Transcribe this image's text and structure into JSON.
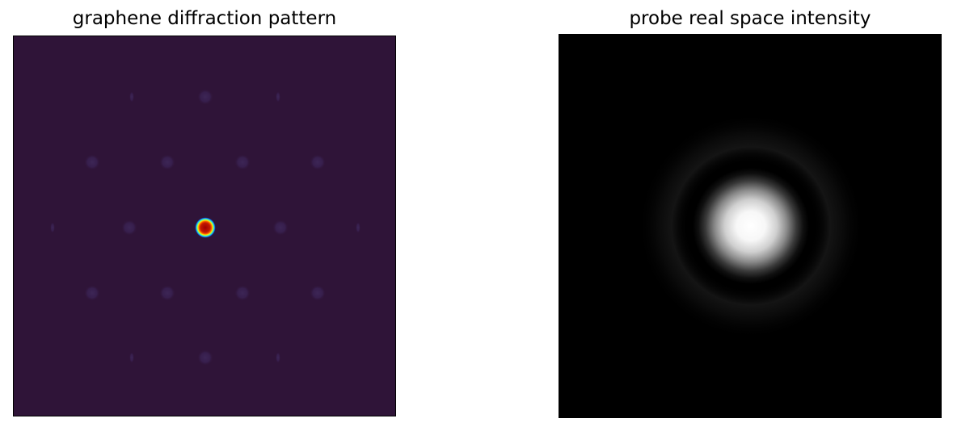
{
  "figure": {
    "left_panel": {
      "title": "graphene diffraction pattern",
      "colormap": "jet",
      "background_color": "#2f1438",
      "spot_color": "#3a2352",
      "central_beam_colors": [
        "#0a2fff",
        "#00ffee",
        "#ffea00",
        "#ff3b00",
        "#a00000"
      ]
    },
    "right_panel": {
      "title": "probe real space intensity",
      "colormap": "gray",
      "background_color": "#000000",
      "probe_color": "#ffffff"
    }
  }
}
